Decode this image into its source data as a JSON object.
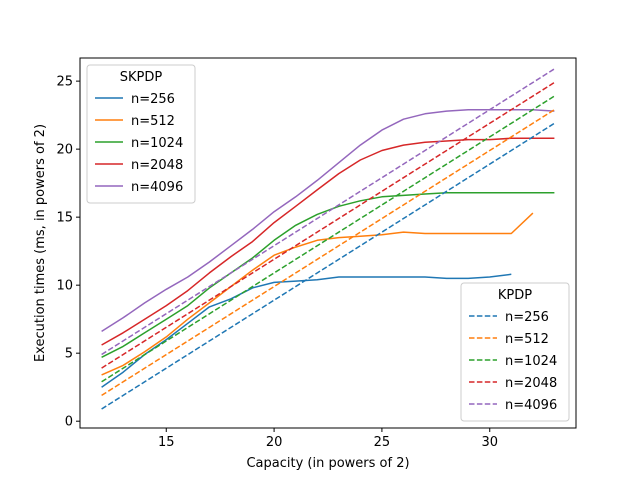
{
  "chart_data": {
    "type": "line",
    "xlabel": "Capacity (in powers of 2)",
    "ylabel": "Execution times (ms, in powers of 2)",
    "xlim": [
      11.0,
      34.0
    ],
    "ylim": [
      -0.5,
      26.7
    ],
    "xticks": [
      15,
      20,
      25,
      30
    ],
    "yticks": [
      0,
      5,
      10,
      15,
      20,
      25
    ],
    "grid": false,
    "legends": [
      {
        "title": "SKPDP",
        "placement": "upper-left",
        "group": "SKPDP"
      },
      {
        "title": "KPDP",
        "placement": "lower-right",
        "group": "KPDP"
      }
    ],
    "series": [
      {
        "name": "n=256",
        "group": "SKPDP",
        "style": "solid",
        "color": "#1f77b4",
        "x": [
          12,
          13,
          14,
          15,
          16,
          17,
          18,
          19,
          20,
          21,
          22,
          23,
          24,
          25,
          26,
          27,
          28,
          29,
          30,
          31
        ],
        "y": [
          2.5,
          3.6,
          4.9,
          6.0,
          7.2,
          8.4,
          9.0,
          9.8,
          10.2,
          10.3,
          10.4,
          10.6,
          10.6,
          10.6,
          10.6,
          10.6,
          10.5,
          10.5,
          10.6,
          10.8
        ]
      },
      {
        "name": "n=512",
        "group": "SKPDP",
        "style": "solid",
        "color": "#ff7f0e",
        "x": [
          12,
          13,
          14,
          15,
          16,
          17,
          18,
          19,
          20,
          21,
          22,
          23,
          24,
          25,
          26,
          27,
          28,
          29,
          30,
          31,
          32
        ],
        "y": [
          3.4,
          4.1,
          5.1,
          6.2,
          7.5,
          8.7,
          9.9,
          11.1,
          12.2,
          12.8,
          13.3,
          13.5,
          13.6,
          13.7,
          13.9,
          13.8,
          13.8,
          13.8,
          13.8,
          13.8,
          15.3
        ]
      },
      {
        "name": "n=1024",
        "group": "SKPDP",
        "style": "solid",
        "color": "#2ca02c",
        "x": [
          12,
          13,
          14,
          15,
          16,
          17,
          18,
          19,
          20,
          21,
          22,
          23,
          24,
          25,
          26,
          27,
          28,
          29,
          30,
          31,
          32,
          33
        ],
        "y": [
          4.7,
          5.5,
          6.5,
          7.5,
          8.5,
          9.8,
          10.9,
          12.0,
          13.3,
          14.4,
          15.2,
          15.8,
          16.2,
          16.5,
          16.6,
          16.7,
          16.8,
          16.8,
          16.8,
          16.8,
          16.8,
          16.8
        ]
      },
      {
        "name": "n=2048",
        "group": "SKPDP",
        "style": "solid",
        "color": "#d62728",
        "x": [
          12,
          13,
          14,
          15,
          16,
          17,
          18,
          19,
          20,
          21,
          22,
          23,
          24,
          25,
          26,
          27,
          28,
          29,
          30,
          31,
          32,
          33
        ],
        "y": [
          5.6,
          6.5,
          7.5,
          8.5,
          9.6,
          10.9,
          12.1,
          13.2,
          14.6,
          15.8,
          17.0,
          18.2,
          19.2,
          19.9,
          20.3,
          20.5,
          20.6,
          20.7,
          20.7,
          20.8,
          20.8,
          20.8
        ]
      },
      {
        "name": "n=4096",
        "group": "SKPDP",
        "style": "solid",
        "color": "#9467bd",
        "x": [
          12,
          13,
          14,
          15,
          16,
          17,
          18,
          19,
          20,
          21,
          22,
          23,
          24,
          25,
          26,
          27,
          28,
          29,
          30,
          31,
          32,
          33
        ],
        "y": [
          6.6,
          7.6,
          8.7,
          9.7,
          10.6,
          11.7,
          12.9,
          14.1,
          15.4,
          16.5,
          17.7,
          19.0,
          20.3,
          21.4,
          22.2,
          22.6,
          22.8,
          22.9,
          22.9,
          22.9,
          22.9,
          22.8
        ]
      },
      {
        "name": "n=256",
        "group": "KPDP",
        "style": "dashed",
        "color": "#1f77b4",
        "x": [
          12,
          33
        ],
        "y": [
          0.9,
          21.9
        ]
      },
      {
        "name": "n=512",
        "group": "KPDP",
        "style": "dashed",
        "color": "#ff7f0e",
        "x": [
          12,
          33
        ],
        "y": [
          1.9,
          22.9
        ]
      },
      {
        "name": "n=1024",
        "group": "KPDP",
        "style": "dashed",
        "color": "#2ca02c",
        "x": [
          12,
          33
        ],
        "y": [
          2.9,
          23.9
        ]
      },
      {
        "name": "n=2048",
        "group": "KPDP",
        "style": "dashed",
        "color": "#d62728",
        "x": [
          12,
          33
        ],
        "y": [
          3.9,
          24.9
        ]
      },
      {
        "name": "n=4096",
        "group": "KPDP",
        "style": "dashed",
        "color": "#9467bd",
        "x": [
          12,
          33
        ],
        "y": [
          4.9,
          25.9
        ]
      }
    ]
  }
}
